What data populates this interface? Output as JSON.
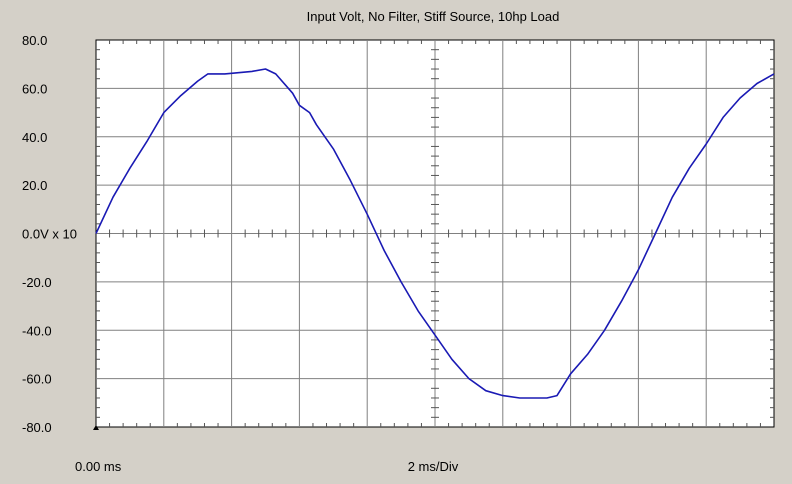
{
  "chart_data": {
    "type": "line",
    "title": "Input Volt, No Filter, Stiff Source, 10hp Load",
    "x_start_label": "0.00 ms",
    "x_div_label": "2 ms/Div",
    "x_unit": "ms",
    "xlim": [
      0,
      20
    ],
    "ylim": [
      -80,
      80
    ],
    "y_ticks": [
      80,
      60,
      40,
      20,
      0,
      -20,
      -40,
      -60,
      -80
    ],
    "y_tick_labels": [
      "80.0",
      "60.0",
      "40.0",
      "20.0",
      "0.0V x 10",
      "-20.0",
      "-40.0",
      "-60.0",
      "-80.0"
    ],
    "grid": true,
    "series": [
      {
        "color": "#1a1ab4",
        "x": [
          0,
          0.5,
          1,
          1.5,
          2,
          2.5,
          3,
          3.3,
          3.6,
          3.8,
          4.2,
          4.6,
          5,
          5.3,
          5.8,
          6,
          6.3,
          6.5,
          7,
          7.5,
          8,
          8.5,
          9,
          9.5,
          10,
          10.5,
          11,
          11.5,
          12,
          12.5,
          13,
          13.3,
          13.6,
          14,
          14.5,
          15,
          15.5,
          16,
          16.5,
          17,
          17.5,
          18,
          18.5,
          19,
          19.5,
          20
        ],
        "values": [
          0,
          15,
          27,
          38,
          50,
          57,
          63,
          66,
          66,
          66,
          66.5,
          67,
          68,
          66,
          58,
          53,
          50,
          45,
          35,
          22,
          8,
          -7,
          -20,
          -32,
          -42,
          -52,
          -60,
          -65,
          -67,
          -68,
          -68,
          -68,
          -67,
          -58,
          -50,
          -40,
          -28,
          -15,
          0,
          15,
          27,
          37,
          48,
          56,
          62,
          66
        ]
      }
    ]
  }
}
